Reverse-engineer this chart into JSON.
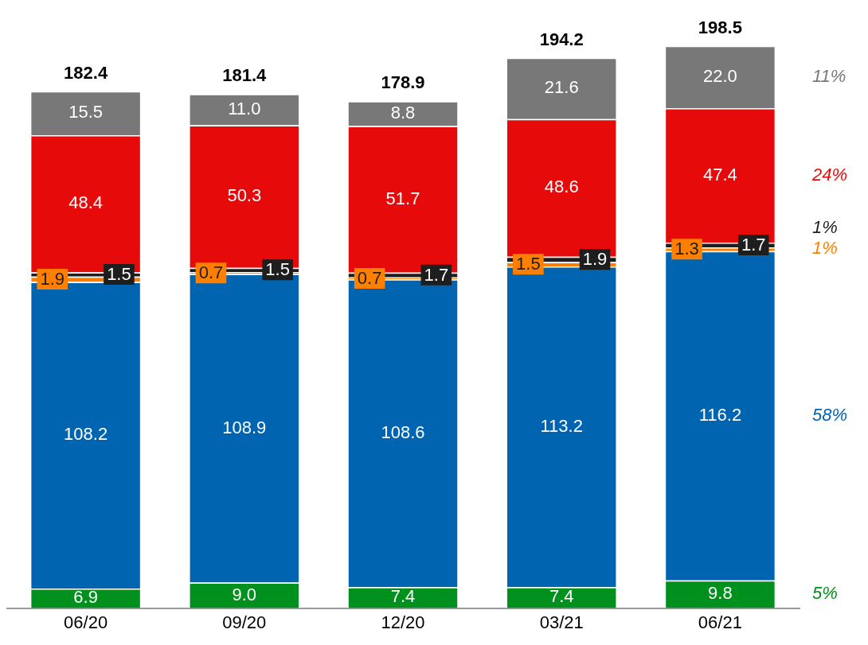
{
  "chart_data": {
    "type": "bar",
    "stacked": true,
    "legend": false,
    "grid": false,
    "categories": [
      "06/20",
      "09/20",
      "12/20",
      "03/21",
      "06/21"
    ],
    "series": [
      {
        "color": "#00901e",
        "values": [
          6.9,
          9.0,
          7.4,
          7.4,
          9.8
        ],
        "value_labels": [
          "6.9",
          "9.0",
          "7.4",
          "7.4",
          "9.8"
        ]
      },
      {
        "color": "#0064b0",
        "values": [
          108.2,
          108.9,
          108.6,
          113.2,
          116.2
        ],
        "value_labels": [
          "108.2",
          "108.9",
          "108.6",
          "113.2",
          "116.2"
        ]
      },
      {
        "color": "#ff8000",
        "values": [
          1.9,
          0.7,
          0.7,
          1.5,
          1.3
        ],
        "value_labels": [
          "1.9",
          "0.7",
          "0.7",
          "1.5",
          "1.3"
        ]
      },
      {
        "color": "#1e1e1e",
        "values": [
          1.5,
          1.5,
          1.7,
          1.9,
          1.7
        ],
        "value_labels": [
          "1.5",
          "1.5",
          "1.7",
          "1.9",
          "1.7"
        ]
      },
      {
        "color": "#e60a0a",
        "values": [
          48.4,
          50.3,
          51.7,
          48.6,
          47.4
        ],
        "value_labels": [
          "48.4",
          "50.3",
          "51.7",
          "48.6",
          "47.4"
        ]
      },
      {
        "color": "#787878",
        "values": [
          15.5,
          11.0,
          8.8,
          21.6,
          22.0
        ],
        "value_labels": [
          "15.5",
          "11.0",
          "8.8",
          "21.6",
          "22.0"
        ]
      }
    ],
    "totals": [
      "182.4",
      "181.4",
      "178.9",
      "194.2",
      "198.5"
    ],
    "annotations": [
      "5%",
      "58%",
      "1%",
      "1%",
      "24%",
      "11%"
    ]
  }
}
